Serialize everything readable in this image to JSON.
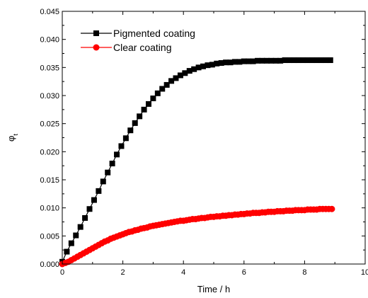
{
  "chart_data": {
    "type": "scatter",
    "xlabel": "Time / h",
    "ylabel": "φt",
    "xlim": [
      0,
      10
    ],
    "ylim": [
      0,
      0.045
    ],
    "x_ticks": [
      "0",
      "2",
      "4",
      "6",
      "8",
      "10"
    ],
    "y_ticks": [
      "0.000",
      "0.005",
      "0.010",
      "0.015",
      "0.020",
      "0.025",
      "0.030",
      "0.035",
      "0.040",
      "0.045"
    ],
    "grid": false,
    "legend_position": "top-left",
    "series": [
      {
        "name": "Pigmented coating",
        "marker": "square",
        "color": "#000000",
        "x": [
          0.0,
          0.15,
          0.3,
          0.45,
          0.6,
          0.75,
          0.9,
          1.05,
          1.2,
          1.35,
          1.5,
          1.65,
          1.8,
          1.95,
          2.1,
          2.25,
          2.4,
          2.55,
          2.7,
          2.85,
          3.0,
          3.15,
          3.3,
          3.45,
          3.6,
          3.75,
          3.9,
          4.05,
          4.2,
          4.35,
          4.5,
          4.65,
          4.8,
          4.95,
          5.1,
          5.25,
          5.4,
          5.55,
          5.7,
          5.85,
          6.0,
          6.15,
          6.3,
          6.45,
          6.6,
          6.75,
          6.9,
          7.05,
          7.2,
          7.35,
          7.5,
          7.65,
          7.8,
          7.95,
          8.1,
          8.25,
          8.4,
          8.55,
          8.7,
          8.85
        ],
        "y": [
          0.0004,
          0.0022,
          0.0037,
          0.0051,
          0.0066,
          0.0082,
          0.0098,
          0.0114,
          0.013,
          0.0147,
          0.0163,
          0.0179,
          0.0195,
          0.021,
          0.0224,
          0.0238,
          0.0251,
          0.0263,
          0.0275,
          0.0285,
          0.0295,
          0.0304,
          0.0312,
          0.0319,
          0.0326,
          0.0331,
          0.0336,
          0.034,
          0.0344,
          0.0347,
          0.035,
          0.0352,
          0.0354,
          0.0355,
          0.0357,
          0.0358,
          0.0359,
          0.0359,
          0.036,
          0.036,
          0.0361,
          0.0361,
          0.0361,
          0.0362,
          0.0362,
          0.0362,
          0.0362,
          0.0362,
          0.0362,
          0.0363,
          0.0363,
          0.0363,
          0.0363,
          0.0363,
          0.0363,
          0.0363,
          0.0363,
          0.0363,
          0.0363,
          0.0363
        ]
      },
      {
        "name": "Clear coating",
        "marker": "circle",
        "color": "#ff0000",
        "x": [
          0.0,
          0.1,
          0.2,
          0.3,
          0.4,
          0.5,
          0.6,
          0.7,
          0.8,
          0.9,
          1.0,
          1.1,
          1.2,
          1.3,
          1.4,
          1.5,
          1.6,
          1.7,
          1.8,
          1.9,
          2.0,
          2.1,
          2.2,
          2.3,
          2.4,
          2.5,
          2.6,
          2.7,
          2.8,
          2.9,
          3.0,
          3.1,
          3.2,
          3.3,
          3.4,
          3.5,
          3.6,
          3.7,
          3.8,
          3.9,
          4.0,
          4.1,
          4.2,
          4.3,
          4.4,
          4.5,
          4.6,
          4.7,
          4.8,
          4.9,
          5.0,
          5.1,
          5.2,
          5.3,
          5.4,
          5.5,
          5.6,
          5.7,
          5.8,
          5.9,
          6.0,
          6.1,
          6.2,
          6.3,
          6.4,
          6.5,
          6.6,
          6.7,
          6.8,
          6.9,
          7.0,
          7.1,
          7.2,
          7.3,
          7.4,
          7.5,
          7.6,
          7.7,
          7.8,
          7.9,
          8.0,
          8.1,
          8.2,
          8.3,
          8.4,
          8.5,
          8.6,
          8.7,
          8.8,
          8.9
        ],
        "y": [
          0.0,
          0.0002,
          0.0004,
          0.0007,
          0.001,
          0.0013,
          0.0016,
          0.0019,
          0.0022,
          0.0025,
          0.0028,
          0.0031,
          0.0034,
          0.0037,
          0.004,
          0.0042,
          0.0045,
          0.0047,
          0.0049,
          0.0051,
          0.0053,
          0.0055,
          0.0057,
          0.0058,
          0.006,
          0.0061,
          0.0063,
          0.0064,
          0.0065,
          0.0067,
          0.0068,
          0.0069,
          0.007,
          0.0071,
          0.0072,
          0.0073,
          0.0074,
          0.0075,
          0.0076,
          0.0077,
          0.0077,
          0.0078,
          0.0079,
          0.008,
          0.008,
          0.0081,
          0.0082,
          0.0082,
          0.0083,
          0.0084,
          0.0084,
          0.0085,
          0.0085,
          0.0086,
          0.0086,
          0.0087,
          0.0087,
          0.0088,
          0.0088,
          0.0089,
          0.0089,
          0.009,
          0.009,
          0.0091,
          0.0091,
          0.0091,
          0.0092,
          0.0092,
          0.0093,
          0.0093,
          0.0093,
          0.0094,
          0.0094,
          0.0094,
          0.0095,
          0.0095,
          0.0095,
          0.0096,
          0.0096,
          0.0096,
          0.0096,
          0.0097,
          0.0097,
          0.0097,
          0.0097,
          0.0098,
          0.0098,
          0.0098,
          0.0098,
          0.0098
        ]
      }
    ]
  }
}
